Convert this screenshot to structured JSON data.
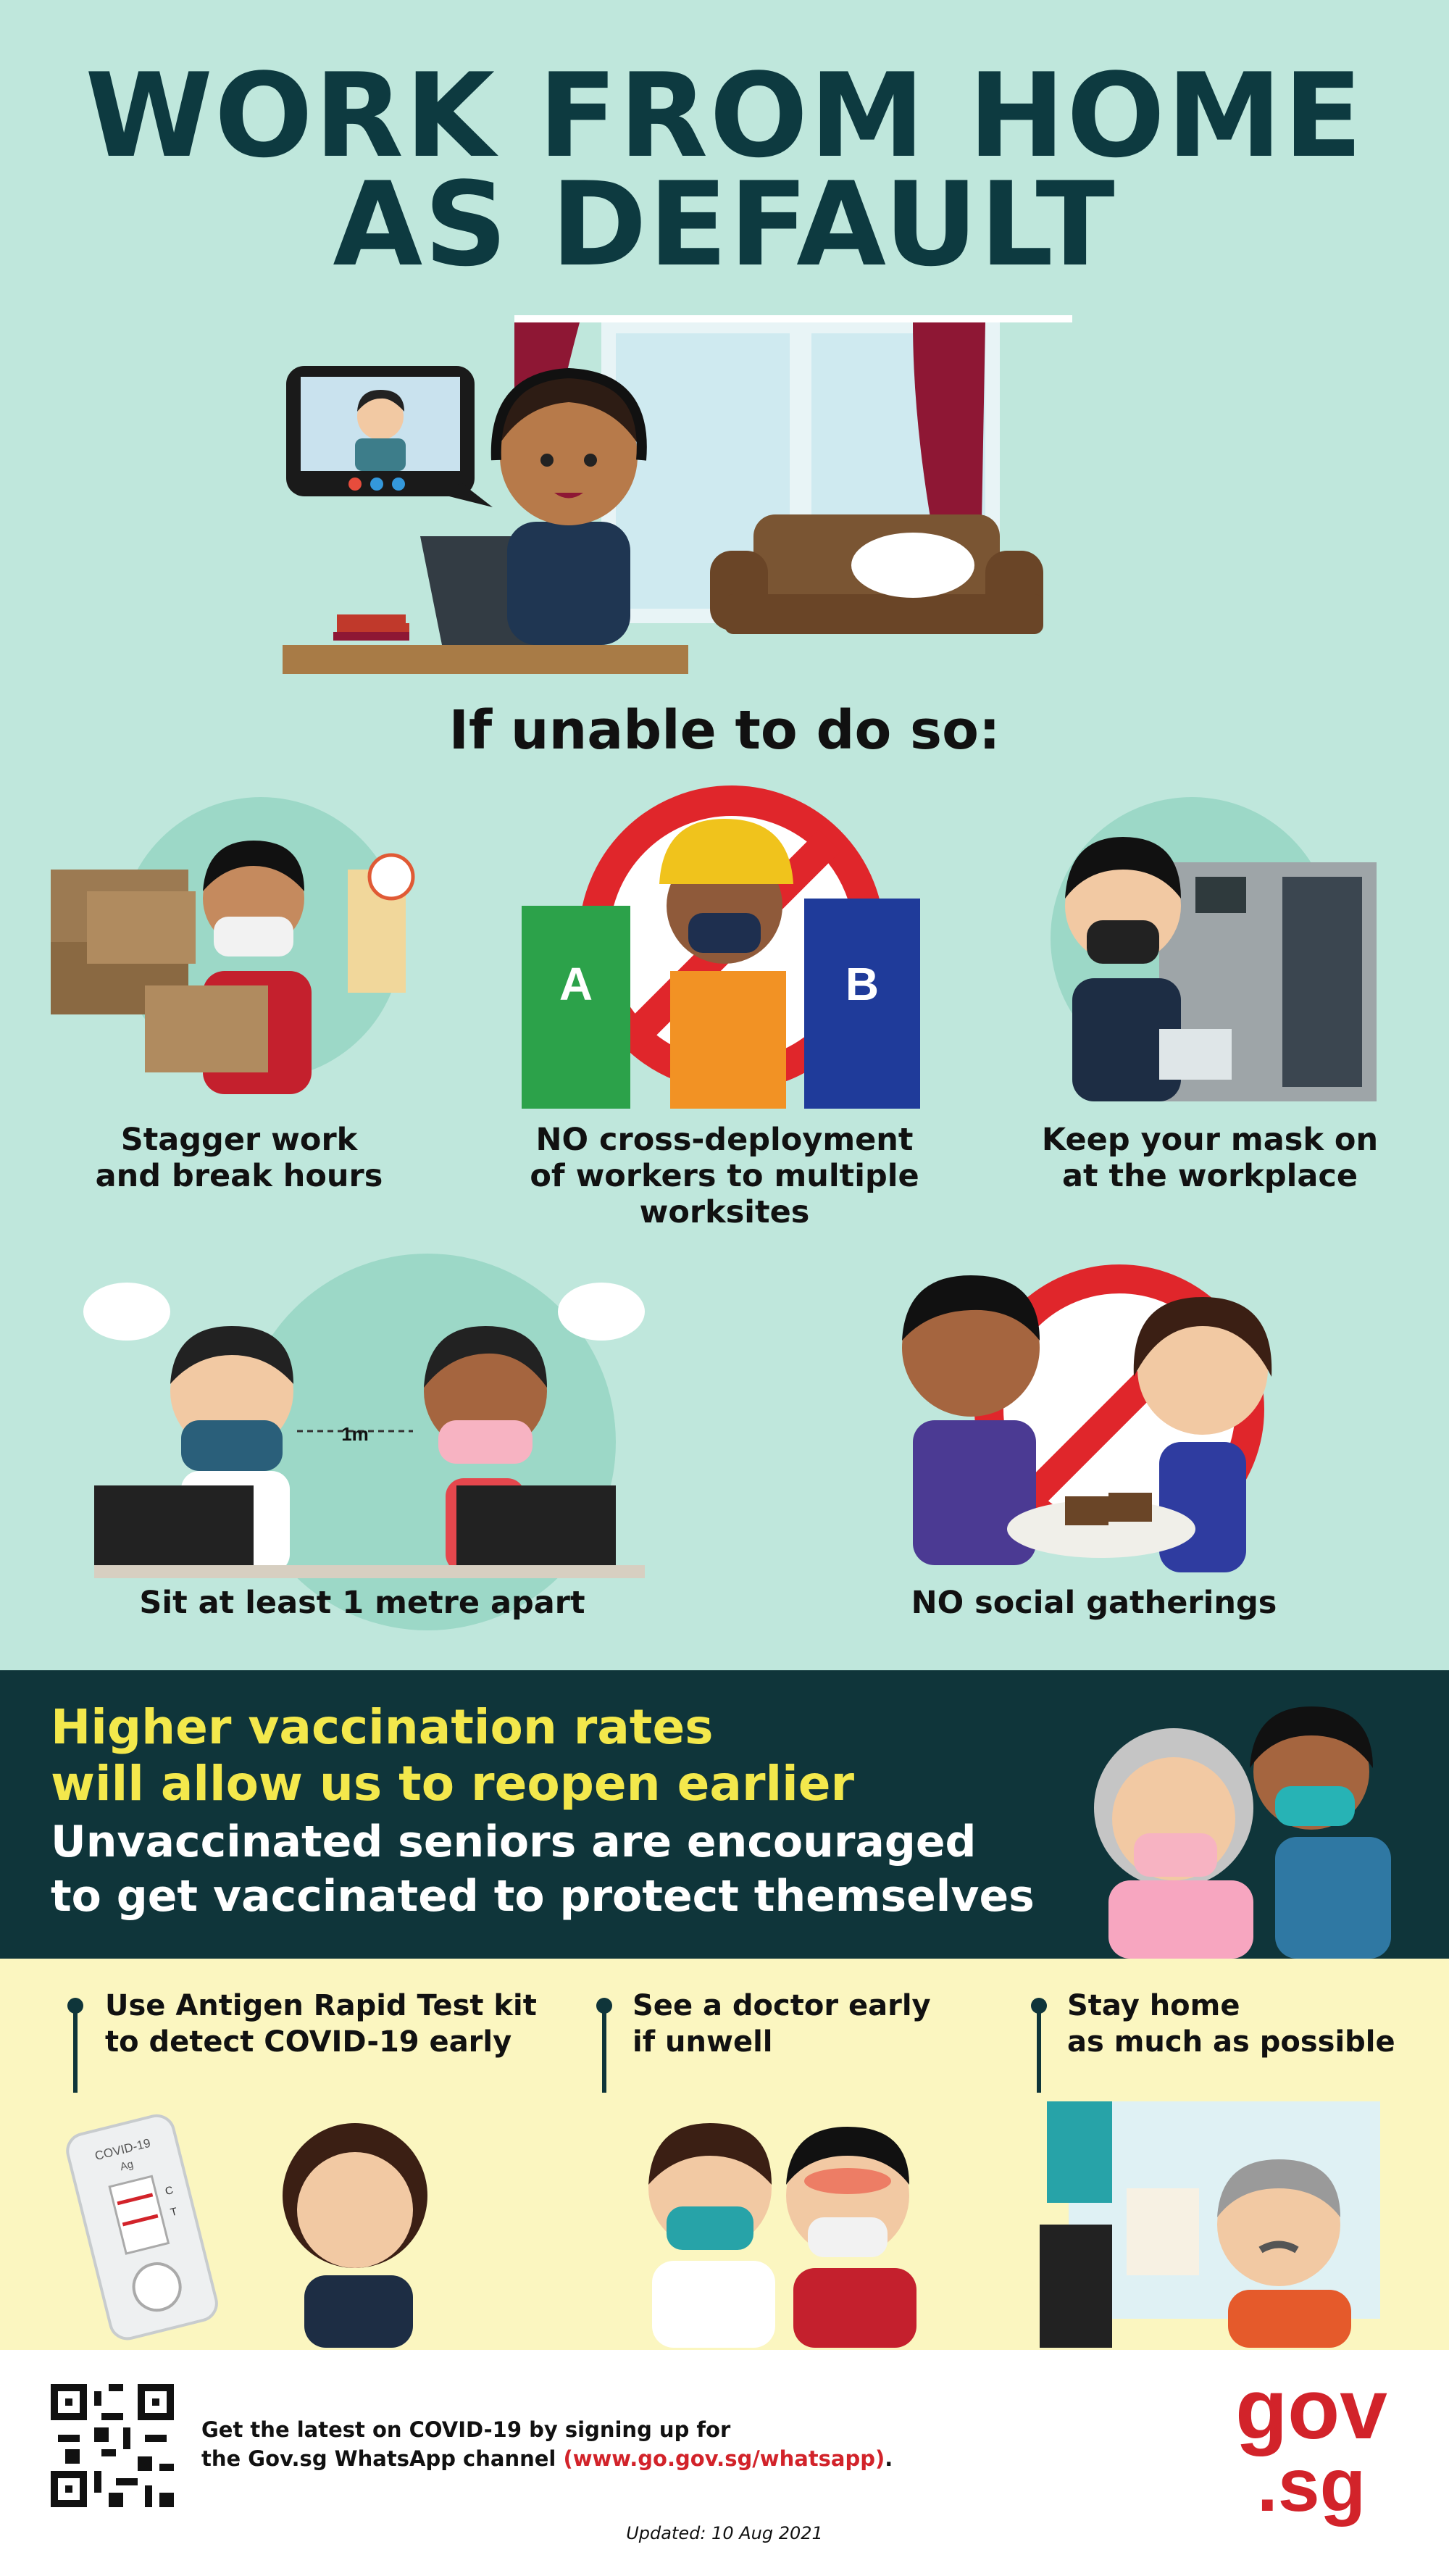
{
  "title": {
    "line1": "WORK FROM HOME",
    "line2": "AS DEFAULT"
  },
  "subheading": "If unable to do so:",
  "measures": [
    {
      "caption_l1": "Stagger work",
      "caption_l2": "and break hours",
      "caption_l3": ""
    },
    {
      "caption_l1": "NO cross-deployment",
      "caption_l2": "of workers to multiple",
      "caption_l3": "worksites",
      "label_a": "A",
      "label_b": "B"
    },
    {
      "caption_l1": "Keep your mask on",
      "caption_l2": "at the workplace",
      "caption_l3": ""
    },
    {
      "caption_l1": "Sit at least 1 metre apart",
      "distance_label": "1m"
    },
    {
      "caption_l1": "NO social gatherings"
    }
  ],
  "vaccination": {
    "headline_l1": "Higher vaccination rates",
    "headline_l2": "will allow us to reopen earlier",
    "sub_l1": "Unvaccinated seniors are encouraged",
    "sub_l2": "to get vaccinated to protect themselves"
  },
  "tips": [
    {
      "l1": "Use Antigen Rapid Test kit",
      "l2": "to detect COVID-19 early",
      "kit_label_l1": "COVID-19",
      "kit_label_l2": "Ag",
      "kit_c": "C",
      "kit_t": "T"
    },
    {
      "l1": "See a doctor early",
      "l2": "if unwell"
    },
    {
      "l1": "Stay home",
      "l2": "as much as possible"
    }
  ],
  "footer": {
    "line1": "Get the latest on COVID-19 by signing up for",
    "line2_prefix": "the Gov.sg WhatsApp channel ",
    "link": "(www.go.gov.sg/whatsapp)",
    "line2_suffix": ".",
    "updated": "Updated: 10 Aug 2021",
    "logo_l1": "gov",
    "logo_l2": ".sg"
  },
  "colors": {
    "background": "#bfe7dc",
    "dark_panel": "#0f353a",
    "yellow_panel": "#fbf6c0",
    "title": "#0d3a40",
    "accent_yellow": "#f3e84c",
    "accent_red": "#d2232a"
  }
}
